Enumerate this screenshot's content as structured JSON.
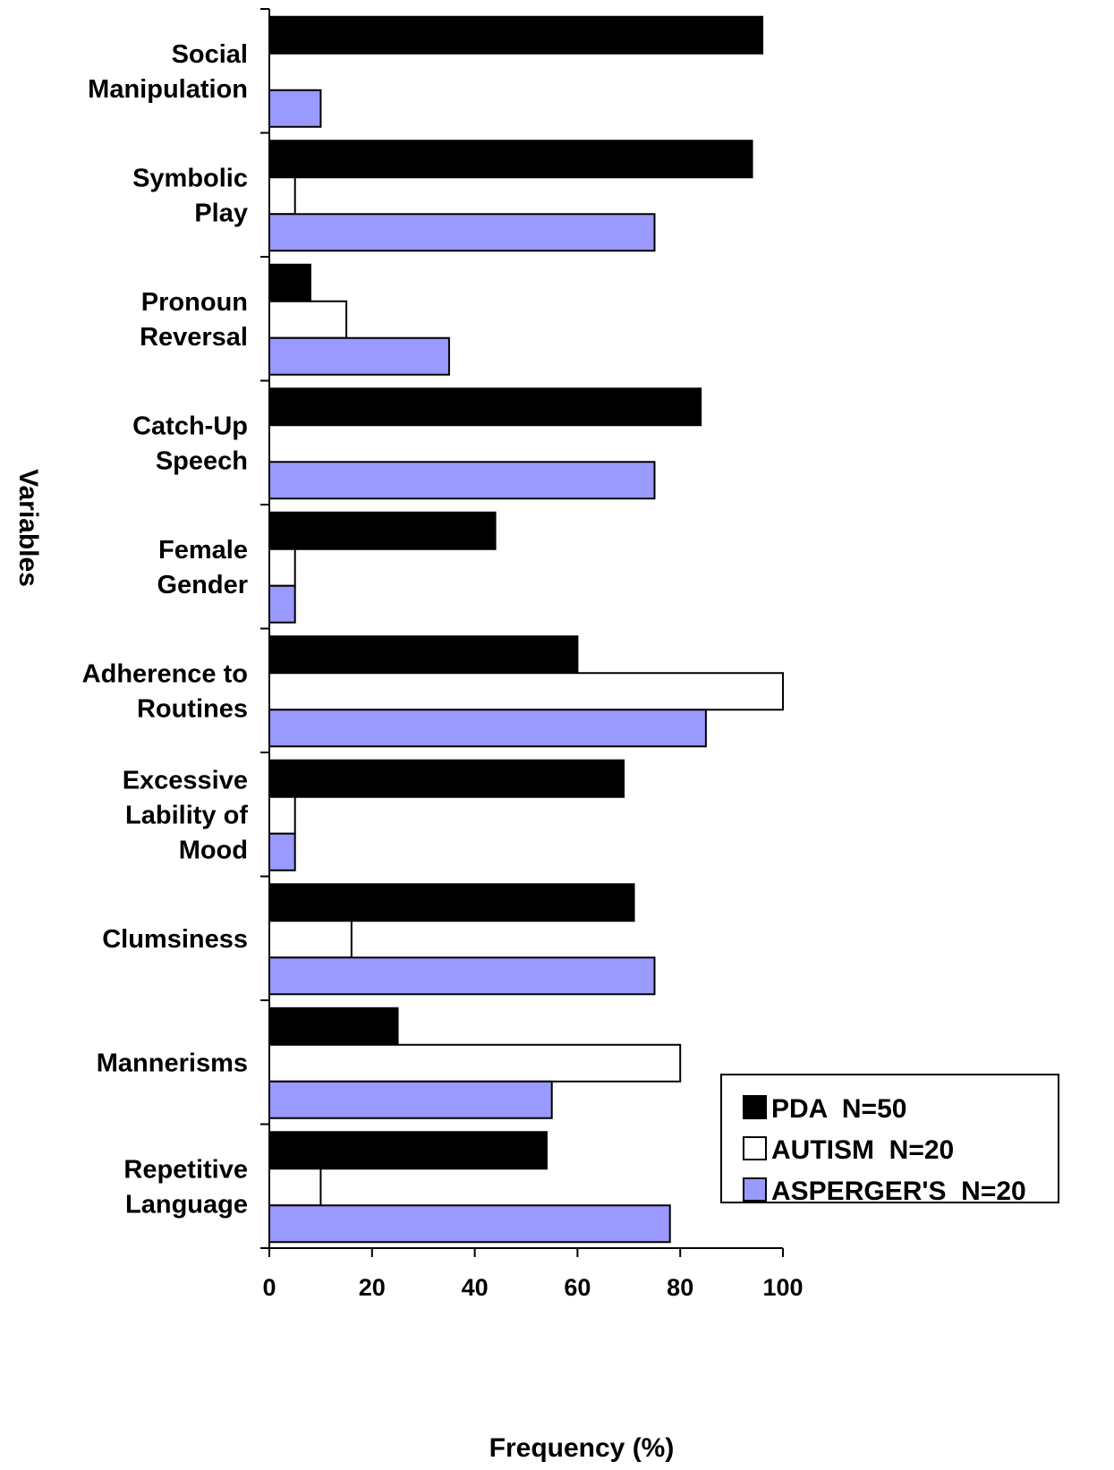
{
  "chart_data": {
    "type": "bar",
    "orientation": "horizontal",
    "categories": [
      [
        "Social",
        "Manipulation"
      ],
      [
        "Symbolic",
        "Play"
      ],
      [
        "Pronoun",
        "Reversal"
      ],
      [
        "Catch-Up",
        "Speech"
      ],
      [
        "Female",
        "Gender"
      ],
      [
        "Adherence to",
        "Routines"
      ],
      [
        "Excessive",
        "Lability of",
        "Mood"
      ],
      [
        "Clumsiness"
      ],
      [
        "Mannerisms"
      ],
      [
        "Repetitive",
        "Language"
      ]
    ],
    "series": [
      {
        "name": "PDA  N=50",
        "color": "#000000",
        "values": [
          96,
          94,
          8,
          84,
          44,
          60,
          69,
          71,
          25,
          54
        ]
      },
      {
        "name": "AUTISM  N=20",
        "color": "#ffffff",
        "values": [
          0,
          5,
          15,
          0,
          5,
          100,
          5,
          16,
          80,
          10
        ]
      },
      {
        "name": "ASPERGER'S  N=20",
        "color": "#9999ff",
        "values": [
          10,
          75,
          35,
          75,
          5,
          85,
          5,
          75,
          55,
          78
        ]
      }
    ],
    "xlabel": "Frequency (%)",
    "ylabel": "Variables",
    "xlim": [
      0,
      100
    ],
    "xticks": [
      0,
      20,
      40,
      60,
      80,
      100
    ],
    "grid": false,
    "legend_position": "bottom-right"
  }
}
